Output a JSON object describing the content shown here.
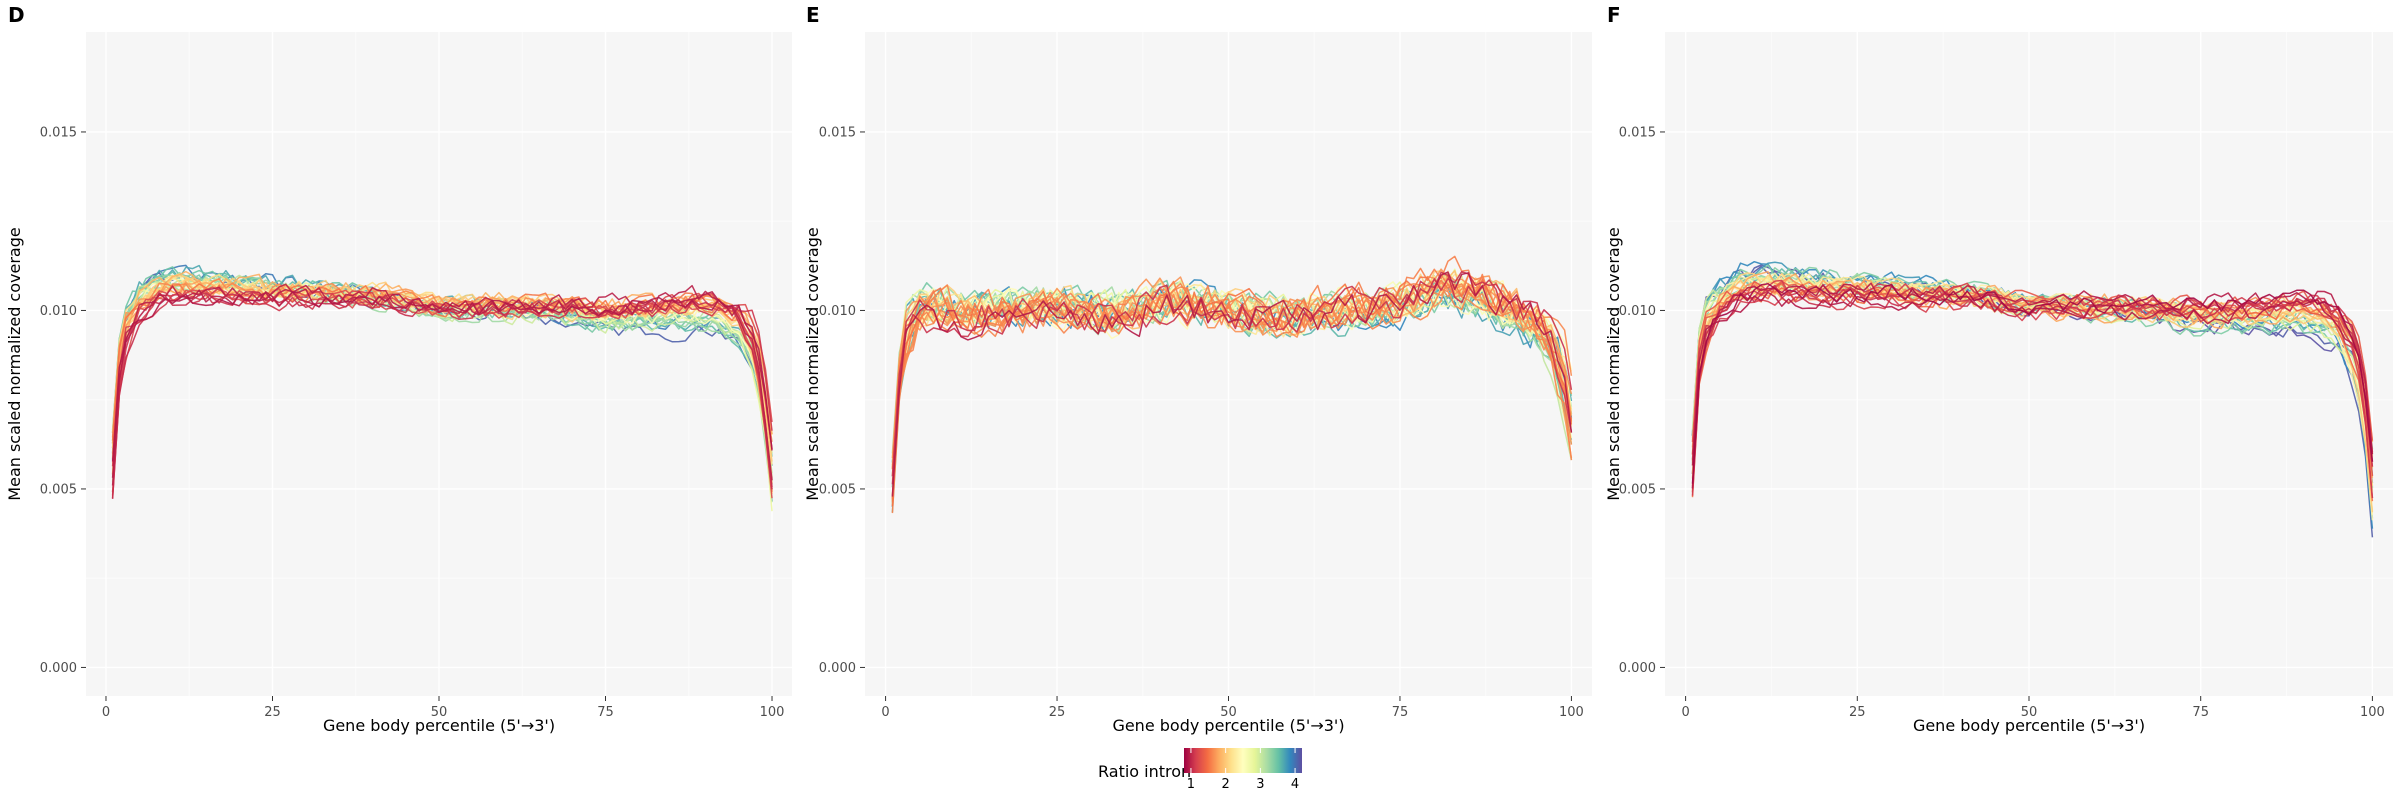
{
  "chart_data": [
    {
      "panel": "D",
      "type": "line",
      "xlabel": "Gene body percentile (5'→3')",
      "ylabel": "Mean scaled normalized coverage",
      "xlim": [
        -3,
        103
      ],
      "ylim": [
        -0.0008,
        0.0178
      ],
      "xticks": [
        0,
        25,
        50,
        75,
        100
      ],
      "yticks": [
        0.0,
        0.005,
        0.01,
        0.015
      ],
      "ytick_labels": [
        "0.000",
        "0.005",
        "0.010",
        "0.015"
      ],
      "grid": true,
      "profile": {
        "x": [
          1,
          2,
          3,
          5,
          8,
          12,
          18,
          25,
          33,
          42,
          50,
          58,
          66,
          74,
          82,
          88,
          92,
          95,
          97,
          98.5,
          100
        ],
        "y": [
          0.006,
          0.0087,
          0.0097,
          0.0103,
          0.0107,
          0.0108,
          0.0107,
          0.0106,
          0.0105,
          0.0104,
          0.0101,
          0.0101,
          0.0101,
          0.0099,
          0.0099,
          0.01,
          0.0099,
          0.0096,
          0.009,
          0.008,
          0.0055
        ]
      },
      "series_count": 34,
      "ratio_range": [
        0.8,
        4.2
      ],
      "noise": 0.00022,
      "start_spread": 0.0008,
      "end_spread": 0.001,
      "trend_5prime": 0.0009,
      "trend_3prime": -0.0022,
      "seed": 11
    },
    {
      "panel": "E",
      "type": "line",
      "xlabel": "Gene body percentile (5'→3')",
      "ylabel": "Mean scaled normalized coverage",
      "xlim": [
        -3,
        103
      ],
      "ylim": [
        -0.0008,
        0.0178
      ],
      "xticks": [
        0,
        25,
        50,
        75,
        100
      ],
      "yticks": [
        0.0,
        0.005,
        0.01,
        0.015
      ],
      "ytick_labels": [
        "0.000",
        "0.005",
        "0.010",
        "0.015"
      ],
      "grid": true,
      "profile": {
        "x": [
          1,
          2,
          3,
          5,
          8,
          12,
          18,
          25,
          33,
          42,
          50,
          58,
          66,
          74,
          82,
          88,
          92,
          95,
          97,
          98.5,
          100
        ],
        "y": [
          0.005,
          0.008,
          0.0092,
          0.01,
          0.0101,
          0.01,
          0.01,
          0.0101,
          0.0099,
          0.0103,
          0.01,
          0.0098,
          0.01,
          0.0101,
          0.0107,
          0.0103,
          0.01,
          0.0095,
          0.009,
          0.0083,
          0.0068
        ]
      },
      "series_count": 34,
      "ratio_range": [
        0.8,
        4.2
      ],
      "noise": 0.00045,
      "start_spread": 0.0008,
      "end_spread": 0.0012,
      "trend_5prime": 0.0004,
      "trend_3prime": -0.0018,
      "seed": 23
    },
    {
      "panel": "F",
      "type": "line",
      "xlabel": "Gene body percentile (5'→3')",
      "ylabel": "Mean scaled normalized coverage",
      "xlim": [
        -3,
        103
      ],
      "ylim": [
        -0.0008,
        0.0178
      ],
      "xticks": [
        0,
        25,
        50,
        75,
        100
      ],
      "yticks": [
        0.0,
        0.005,
        0.01,
        0.015
      ],
      "ytick_labels": [
        "0.000",
        "0.005",
        "0.010",
        "0.015"
      ],
      "grid": true,
      "profile": {
        "x": [
          1,
          2,
          3,
          5,
          8,
          12,
          18,
          25,
          33,
          42,
          50,
          58,
          66,
          74,
          82,
          88,
          92,
          95,
          97,
          98.5,
          100
        ],
        "y": [
          0.0058,
          0.0088,
          0.0097,
          0.0103,
          0.0107,
          0.0108,
          0.0107,
          0.0106,
          0.0105,
          0.0104,
          0.0101,
          0.0101,
          0.01,
          0.0098,
          0.0098,
          0.0099,
          0.0098,
          0.0095,
          0.0089,
          0.008,
          0.0052
        ]
      },
      "series_count": 34,
      "ratio_range": [
        0.8,
        4.2
      ],
      "noise": 0.00022,
      "start_spread": 0.0008,
      "end_spread": 0.001,
      "trend_5prime": 0.0009,
      "trend_3prime": -0.0022,
      "seed": 37
    }
  ],
  "legend": {
    "title": "Ratio intron",
    "ticks": [
      1,
      2,
      3,
      4
    ],
    "range": [
      0.8,
      4.2
    ],
    "gradient": [
      "#9e0142",
      "#d53e4f",
      "#f46d43",
      "#fdae61",
      "#fee08b",
      "#ffffbf",
      "#e6f598",
      "#abdda4",
      "#66c2a5",
      "#3288bd",
      "#5e4fa2"
    ]
  },
  "colors": {
    "panel_bg": "#f6f6f6",
    "grid_major": "#ffffff",
    "grid_minor": "#fbfbfb",
    "tick": "#333333"
  }
}
